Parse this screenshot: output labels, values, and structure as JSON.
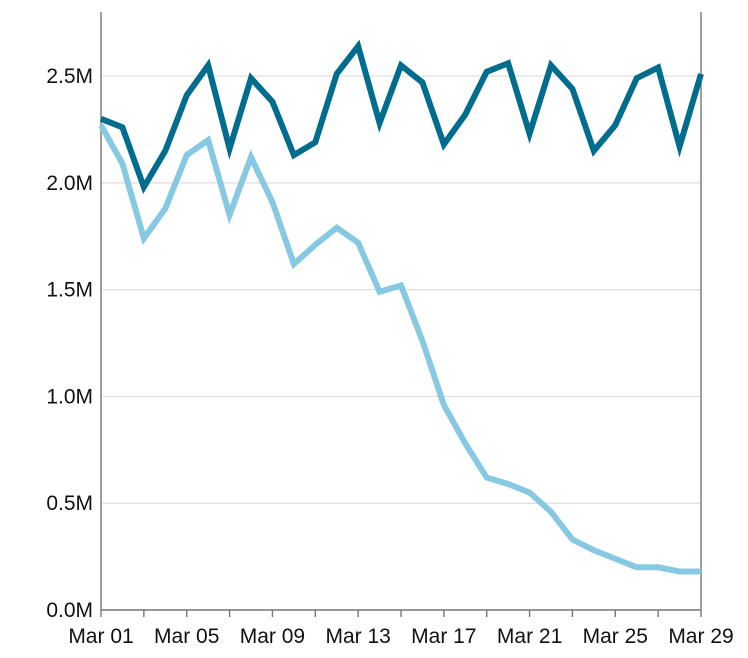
{
  "chart_data": {
    "type": "line",
    "title": "",
    "xlabel": "",
    "ylabel": "",
    "x": [
      "2020-03-01",
      "2020-03-02",
      "2020-03-03",
      "2020-03-04",
      "2020-03-05",
      "2020-03-06",
      "2020-03-07",
      "2020-03-08",
      "2020-03-09",
      "2020-03-10",
      "2020-03-11",
      "2020-03-12",
      "2020-03-13",
      "2020-03-14",
      "2020-03-15",
      "2020-03-16",
      "2020-03-17",
      "2020-03-18",
      "2020-03-19",
      "2020-03-20",
      "2020-03-21",
      "2020-03-22",
      "2020-03-23",
      "2020-03-24",
      "2020-03-25",
      "2020-03-26",
      "2020-03-27",
      "2020-03-28",
      "2020-03-29"
    ],
    "x_tick_labels": [
      "Mar 01",
      "Mar 05",
      "Mar 09",
      "Mar 13",
      "Mar 17",
      "Mar 21",
      "Mar 25",
      "Mar 29"
    ],
    "y_tick_labels": [
      "0.0M",
      "0.5M",
      "1.0M",
      "1.5M",
      "2.0M",
      "2.5M"
    ],
    "ylim": [
      0,
      2.8
    ],
    "y_unit": "millions",
    "grid": true,
    "series": [
      {
        "color": "#006c8e",
        "values": [
          2.3,
          2.26,
          1.98,
          2.15,
          2.41,
          2.55,
          2.16,
          2.49,
          2.38,
          2.13,
          2.19,
          2.51,
          2.64,
          2.28,
          2.55,
          2.47,
          2.18,
          2.32,
          2.52,
          2.56,
          2.23,
          2.55,
          2.44,
          2.15,
          2.27,
          2.49,
          2.54,
          2.17,
          2.51
        ]
      },
      {
        "color": "#87c9e3",
        "values": [
          2.27,
          2.09,
          1.74,
          1.88,
          2.13,
          2.2,
          1.85,
          2.12,
          1.91,
          1.62,
          1.71,
          1.79,
          1.72,
          1.49,
          1.52,
          1.26,
          0.96,
          0.78,
          0.62,
          0.59,
          0.55,
          0.46,
          0.33,
          0.28,
          0.24,
          0.2,
          0.2,
          0.18,
          0.18
        ]
      }
    ]
  }
}
